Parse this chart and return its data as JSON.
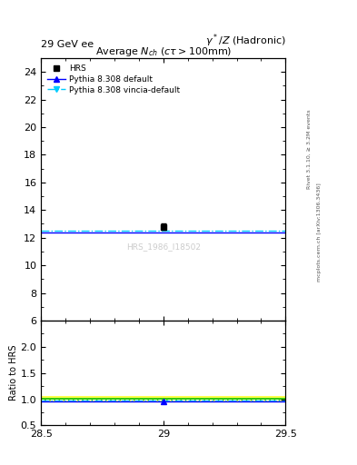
{
  "top_left_label": "29 GeV ee",
  "top_right_label": "γ*/Z (Hadronic)",
  "right_label1": "Rivet 3.1.10, ≥ 3.2M events",
  "right_label2": "mcplots.cern.ch [arXiv:1306.3436]",
  "watermark": "HRS_1986_I18502",
  "xlim": [
    28.5,
    29.5
  ],
  "ylim_main": [
    6,
    25
  ],
  "ylim_ratio": [
    0.5,
    2.5
  ],
  "yticks_main": [
    6,
    8,
    10,
    12,
    14,
    16,
    18,
    20,
    22,
    24
  ],
  "yticks_ratio": [
    0.5,
    1.0,
    1.5,
    2.0
  ],
  "xticks": [
    28.5,
    29.0,
    29.5
  ],
  "ylabel_ratio": "Ratio to HRS",
  "data_x": 29.0,
  "hrs_y": 12.8,
  "hrs_yerr": 0.25,
  "hrs_color": "#000000",
  "hrs_marker": "s",
  "hrs_markersize": 5,
  "pythia_default_y": 12.35,
  "pythia_default_color": "#0000ff",
  "pythia_default_linestyle": "-",
  "pythia_default_marker": "^",
  "pythia_vincia_y": 12.5,
  "pythia_vincia_color": "#00ccff",
  "pythia_vincia_linestyle": "-.",
  "pythia_vincia_marker": "v",
  "band_yellow_outer": 0.055,
  "band_green_inner": 0.02,
  "ratio_default": 0.965,
  "ratio_vincia": 0.977,
  "bg_color": "#ffffff"
}
